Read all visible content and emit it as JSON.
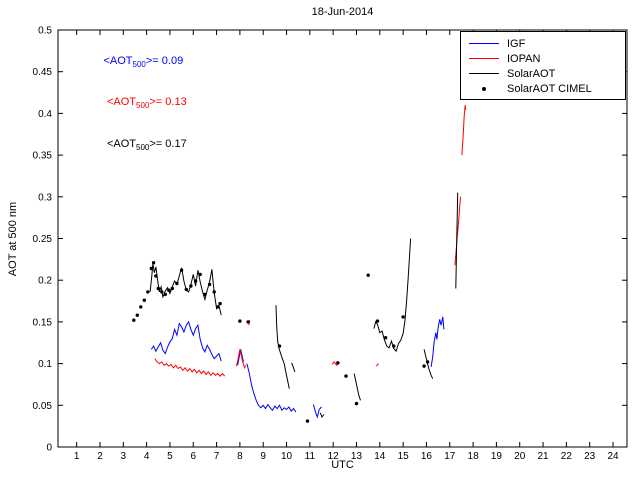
{
  "chart_data": {
    "type": "line",
    "title": "18-Jun-2014",
    "xlabel": "UTC",
    "ylabel": "AOT at 500 nm",
    "xlim": [
      0.2,
      24.6
    ],
    "ylim": [
      0,
      0.5
    ],
    "xticks": [
      1,
      2,
      3,
      4,
      5,
      6,
      7,
      8,
      9,
      10,
      11,
      12,
      13,
      14,
      15,
      16,
      17,
      18,
      19,
      20,
      21,
      22,
      23,
      24
    ],
    "yticks": [
      0,
      0.05,
      0.1,
      0.15,
      0.2,
      0.25,
      0.3,
      0.35,
      0.4,
      0.45,
      0.5
    ],
    "ytick_labels": [
      "0",
      "0.05",
      "0.1",
      "0.15",
      "0.2",
      "0.25",
      "0.3",
      "0.35",
      "0.4",
      "0.45",
      "0.5"
    ],
    "legend": [
      {
        "label": "IGF",
        "color": "#0000ff",
        "type": "line"
      },
      {
        "label": "IOPAN",
        "color": "#ff0000",
        "type": "line"
      },
      {
        "label": "SolarAOT",
        "color": "#000000",
        "type": "line"
      },
      {
        "label": "SolarAOT CIMEL",
        "color": "#000000",
        "type": "dot"
      }
    ],
    "annotations": [
      {
        "prefix": "<AOT",
        "sub": "500",
        "suffix": ">= 0.09",
        "color": "#0000ff",
        "x": 2.15,
        "y": 0.462
      },
      {
        "prefix": "<AOT",
        "sub": "500",
        "suffix": ">= 0.13",
        "color": "#ff0000",
        "x": 2.3,
        "y": 0.413
      },
      {
        "prefix": "<AOT",
        "sub": "500",
        "suffix": ">= 0.17",
        "color": "#000000",
        "x": 2.3,
        "y": 0.362
      }
    ],
    "series": [
      {
        "name": "IGF",
        "color": "#0000ff",
        "segments": [
          [
            [
              4.2,
              0.117
            ],
            [
              4.3,
              0.121
            ],
            [
              4.4,
              0.115
            ],
            [
              4.5,
              0.12
            ],
            [
              4.6,
              0.125
            ],
            [
              4.7,
              0.116
            ],
            [
              4.8,
              0.112
            ],
            [
              4.9,
              0.12
            ],
            [
              5.0,
              0.126
            ],
            [
              5.1,
              0.13
            ],
            [
              5.2,
              0.141
            ],
            [
              5.3,
              0.134
            ],
            [
              5.4,
              0.148
            ],
            [
              5.5,
              0.144
            ],
            [
              5.6,
              0.138
            ],
            [
              5.7,
              0.146
            ],
            [
              5.8,
              0.15
            ],
            [
              5.9,
              0.141
            ],
            [
              6.0,
              0.134
            ],
            [
              6.1,
              0.142
            ],
            [
              6.2,
              0.146
            ],
            [
              6.3,
              0.129
            ],
            [
              6.4,
              0.119
            ],
            [
              6.5,
              0.114
            ],
            [
              6.6,
              0.122
            ],
            [
              6.7,
              0.117
            ],
            [
              6.8,
              0.111
            ],
            [
              6.9,
              0.106
            ],
            [
              7.0,
              0.109
            ],
            [
              7.1,
              0.112
            ],
            [
              7.2,
              0.103
            ]
          ],
          [
            [
              7.9,
              0.098
            ],
            [
              7.97,
              0.108
            ],
            [
              8.03,
              0.117
            ],
            [
              8.1,
              0.109
            ],
            [
              8.15,
              0.102
            ]
          ],
          [
            [
              8.3,
              0.1
            ],
            [
              8.4,
              0.089
            ],
            [
              8.5,
              0.074
            ],
            [
              8.6,
              0.064
            ],
            [
              8.7,
              0.056
            ],
            [
              8.8,
              0.05
            ],
            [
              8.9,
              0.047
            ],
            [
              9.0,
              0.05
            ],
            [
              9.1,
              0.046
            ],
            [
              9.2,
              0.051
            ],
            [
              9.3,
              0.047
            ],
            [
              9.4,
              0.044
            ],
            [
              9.5,
              0.049
            ],
            [
              9.6,
              0.046
            ],
            [
              9.7,
              0.05
            ],
            [
              9.8,
              0.044
            ],
            [
              9.9,
              0.047
            ],
            [
              10.0,
              0.045
            ],
            [
              10.1,
              0.048
            ],
            [
              10.2,
              0.043
            ],
            [
              10.3,
              0.046
            ],
            [
              10.4,
              0.042
            ]
          ],
          [
            [
              11.15,
              0.051
            ],
            [
              11.25,
              0.041
            ],
            [
              11.32,
              0.036
            ],
            [
              11.4,
              0.045
            ],
            [
              11.5,
              0.048
            ]
          ],
          [
            [
              16.2,
              0.096
            ],
            [
              16.27,
              0.108
            ],
            [
              16.33,
              0.126
            ],
            [
              16.4,
              0.137
            ],
            [
              16.45,
              0.129
            ],
            [
              16.5,
              0.143
            ],
            [
              16.57,
              0.153
            ],
            [
              16.63,
              0.146
            ],
            [
              16.7,
              0.156
            ],
            [
              16.75,
              0.141
            ]
          ]
        ]
      },
      {
        "name": "IOPAN",
        "color": "#ff0000",
        "segments": [
          [
            [
              4.35,
              0.106
            ],
            [
              4.45,
              0.102
            ],
            [
              4.55,
              0.1
            ],
            [
              4.65,
              0.102
            ],
            [
              4.75,
              0.098
            ],
            [
              4.85,
              0.1
            ],
            [
              4.95,
              0.097
            ],
            [
              5.05,
              0.099
            ],
            [
              5.15,
              0.095
            ],
            [
              5.25,
              0.098
            ],
            [
              5.35,
              0.094
            ],
            [
              5.45,
              0.096
            ],
            [
              5.55,
              0.092
            ],
            [
              5.65,
              0.095
            ],
            [
              5.75,
              0.091
            ],
            [
              5.85,
              0.094
            ],
            [
              5.95,
              0.09
            ],
            [
              6.05,
              0.093
            ],
            [
              6.15,
              0.089
            ],
            [
              6.25,
              0.092
            ],
            [
              6.35,
              0.088
            ],
            [
              6.45,
              0.091
            ],
            [
              6.55,
              0.087
            ],
            [
              6.65,
              0.09
            ],
            [
              6.75,
              0.086
            ],
            [
              6.85,
              0.089
            ],
            [
              6.95,
              0.086
            ],
            [
              7.05,
              0.088
            ],
            [
              7.15,
              0.085
            ],
            [
              7.25,
              0.088
            ],
            [
              7.35,
              0.085
            ]
          ],
          [
            [
              7.85,
              0.097
            ],
            [
              7.92,
              0.105
            ],
            [
              8.0,
              0.117
            ],
            [
              8.07,
              0.109
            ],
            [
              8.13,
              0.101
            ],
            [
              8.2,
              0.095
            ],
            [
              8.25,
              0.098
            ]
          ],
          [
            [
              8.38,
              0.146
            ],
            [
              8.43,
              0.152
            ]
          ],
          [
            [
              11.95,
              0.099
            ],
            [
              12.05,
              0.102
            ],
            [
              12.15,
              0.098
            ],
            [
              12.28,
              0.101
            ]
          ],
          [
            [
              13.85,
              0.097
            ],
            [
              13.95,
              0.1
            ]
          ],
          [
            [
              17.22,
              0.218
            ],
            [
              17.28,
              0.238
            ],
            [
              17.34,
              0.258
            ],
            [
              17.4,
              0.278
            ],
            [
              17.46,
              0.3
            ]
          ],
          [
            [
              17.52,
              0.35
            ],
            [
              17.57,
              0.372
            ],
            [
              17.62,
              0.397
            ],
            [
              17.66,
              0.41
            ],
            [
              17.68,
              0.404
            ]
          ]
        ]
      },
      {
        "name": "SolarAOT",
        "color": "#000000",
        "segments": [
          [
            [
              4.15,
              0.186
            ],
            [
              4.22,
              0.204
            ],
            [
              4.27,
              0.22
            ],
            [
              4.33,
              0.209
            ],
            [
              4.4,
              0.216
            ],
            [
              4.47,
              0.2
            ],
            [
              4.55,
              0.186
            ],
            [
              4.62,
              0.192
            ],
            [
              4.7,
              0.18
            ],
            [
              4.8,
              0.187
            ],
            [
              4.9,
              0.191
            ],
            [
              5.0,
              0.184
            ],
            [
              5.1,
              0.192
            ],
            [
              5.2,
              0.199
            ],
            [
              5.3,
              0.195
            ],
            [
              5.4,
              0.205
            ],
            [
              5.5,
              0.215
            ],
            [
              5.6,
              0.199
            ],
            [
              5.7,
              0.188
            ],
            [
              5.8,
              0.186
            ],
            [
              5.9,
              0.195
            ],
            [
              6.0,
              0.207
            ],
            [
              6.1,
              0.193
            ],
            [
              6.2,
              0.212
            ],
            [
              6.3,
              0.198
            ],
            [
              6.4,
              0.186
            ],
            [
              6.5,
              0.177
            ],
            [
              6.6,
              0.188
            ],
            [
              6.7,
              0.198
            ],
            [
              6.8,
              0.213
            ],
            [
              6.9,
              0.185
            ],
            [
              7.0,
              0.166
            ],
            [
              7.1,
              0.17
            ],
            [
              7.2,
              0.158
            ]
          ],
          [
            [
              9.55,
              0.17
            ],
            [
              9.58,
              0.145
            ],
            [
              9.62,
              0.126
            ],
            [
              9.68,
              0.118
            ],
            [
              9.75,
              0.112
            ],
            [
              9.82,
              0.106
            ],
            [
              9.9,
              0.1
            ],
            [
              9.97,
              0.09
            ],
            [
              10.05,
              0.079
            ],
            [
              10.12,
              0.07
            ]
          ],
          [
            [
              10.22,
              0.101
            ],
            [
              10.3,
              0.095
            ],
            [
              10.36,
              0.09
            ]
          ],
          [
            [
              11.45,
              0.041
            ],
            [
              11.52,
              0.036
            ],
            [
              11.6,
              0.039
            ]
          ],
          [
            [
              12.9,
              0.088
            ],
            [
              13.0,
              0.075
            ],
            [
              13.1,
              0.062
            ],
            [
              13.17,
              0.056
            ]
          ],
          [
            [
              13.75,
              0.142
            ],
            [
              13.82,
              0.15
            ],
            [
              13.9,
              0.147
            ],
            [
              14.0,
              0.137
            ],
            [
              14.1,
              0.139
            ],
            [
              14.2,
              0.128
            ],
            [
              14.3,
              0.121
            ],
            [
              14.4,
              0.119
            ],
            [
              14.5,
              0.127
            ],
            [
              14.6,
              0.118
            ],
            [
              14.7,
              0.115
            ],
            [
              14.8,
              0.124
            ],
            [
              14.9,
              0.128
            ],
            [
              15.0,
              0.136
            ],
            [
              15.08,
              0.152
            ],
            [
              15.15,
              0.175
            ],
            [
              15.22,
              0.205
            ],
            [
              15.28,
              0.232
            ],
            [
              15.32,
              0.25
            ]
          ],
          [
            [
              15.9,
              0.117
            ],
            [
              16.0,
              0.105
            ],
            [
              16.1,
              0.094
            ],
            [
              16.2,
              0.086
            ],
            [
              16.27,
              0.082
            ]
          ],
          [
            [
              17.26,
              0.19
            ],
            [
              17.29,
              0.235
            ],
            [
              17.32,
              0.275
            ],
            [
              17.34,
              0.305
            ]
          ]
        ]
      }
    ],
    "scatter": {
      "name": "SolarAOT CIMEL",
      "color": "#000000",
      "points": [
        [
          3.45,
          0.152
        ],
        [
          3.6,
          0.158
        ],
        [
          3.75,
          0.168
        ],
        [
          3.9,
          0.176
        ],
        [
          4.05,
          0.186
        ],
        [
          4.2,
          0.214
        ],
        [
          4.3,
          0.221
        ],
        [
          4.4,
          0.205
        ],
        [
          4.5,
          0.19
        ],
        [
          4.65,
          0.186
        ],
        [
          4.8,
          0.183
        ],
        [
          4.95,
          0.188
        ],
        [
          5.1,
          0.19
        ],
        [
          5.3,
          0.196
        ],
        [
          5.5,
          0.212
        ],
        [
          5.7,
          0.189
        ],
        [
          5.9,
          0.193
        ],
        [
          6.1,
          0.199
        ],
        [
          6.3,
          0.207
        ],
        [
          6.5,
          0.183
        ],
        [
          6.7,
          0.195
        ],
        [
          6.9,
          0.186
        ],
        [
          7.05,
          0.168
        ],
        [
          7.15,
          0.172
        ],
        [
          8.0,
          0.151
        ],
        [
          8.35,
          0.15
        ],
        [
          9.7,
          0.121
        ],
        [
          10.9,
          0.031
        ],
        [
          12.2,
          0.101
        ],
        [
          12.55,
          0.085
        ],
        [
          13.0,
          0.052
        ],
        [
          13.5,
          0.206
        ],
        [
          13.9,
          0.151
        ],
        [
          14.25,
          0.131
        ],
        [
          14.6,
          0.121
        ],
        [
          15.0,
          0.156
        ],
        [
          15.9,
          0.097
        ],
        [
          16.05,
          0.102
        ]
      ]
    }
  }
}
